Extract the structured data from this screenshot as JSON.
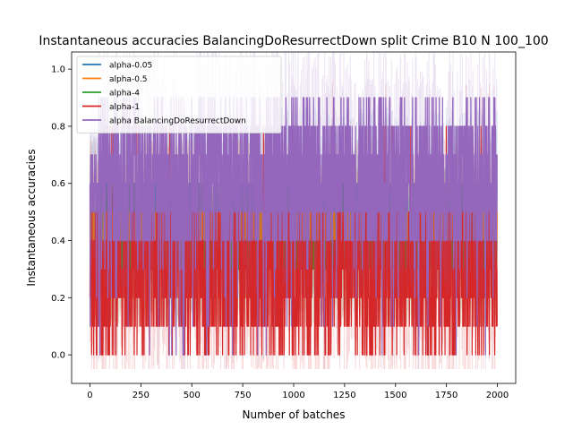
{
  "chart_data": {
    "type": "line",
    "title": "Instantaneous accuracies BalancingDoResurrectDown split Crime B10 N 100_100",
    "xlabel": "Number of batches",
    "ylabel": "Instantaneous accuracies",
    "xlim": [
      -90,
      2090
    ],
    "ylim": [
      -0.1,
      1.06
    ],
    "xticks": [
      0,
      250,
      500,
      750,
      1000,
      1250,
      1500,
      1750,
      2000
    ],
    "yticks": [
      0.0,
      0.2,
      0.4,
      0.6,
      0.8,
      1.0
    ],
    "grid": false,
    "legend_position": "top-left",
    "n_points": 2000,
    "series": [
      {
        "name": "alpha-0.05",
        "color": "#1f77b4",
        "approx_mean": 0.5,
        "range": [
          0.2,
          0.8
        ]
      },
      {
        "name": "alpha-0.5",
        "color": "#ff7f0e",
        "approx_mean": 0.45,
        "range": [
          0.2,
          0.6
        ]
      },
      {
        "name": "alpha-4",
        "color": "#2ca02c",
        "approx_mean": 0.35,
        "range": [
          0.1,
          0.5
        ]
      },
      {
        "name": "alpha-1",
        "color": "#d62728",
        "approx_mean": 0.3,
        "range": [
          0.0,
          0.8
        ]
      },
      {
        "name": "alpha BalancingDoResurrectDown",
        "color": "#9467bd",
        "approx_mean": 0.62,
        "range": [
          0.0,
          1.0
        ]
      }
    ]
  }
}
